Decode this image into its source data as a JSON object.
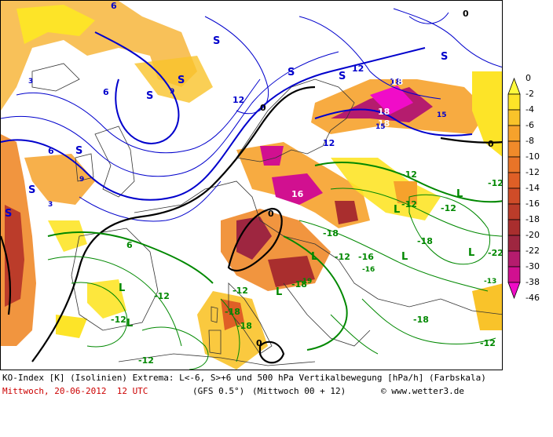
{
  "caption": {
    "line1": "KO-Index [K] (Isolinien) Extrema: L<-6, S>+6 und 500 hPa Vertikalbewegung [hPa/h] (Farbskala)",
    "date": "Mittwoch, 20-06-2012  12 UTC",
    "model": "(GFS 0.5°)",
    "run": "(Mittwoch 00 + 12)",
    "copyright": "© www.wetter3.de"
  },
  "colors": {
    "date_text": "#cc0000",
    "stable_isolines": "#0000cc",
    "unstable_isolines": "#008800",
    "zero_isoline": "#000000"
  },
  "color_scale": {
    "labels": [
      "0",
      "-2",
      "-4",
      "-6",
      "-8",
      "-10",
      "-12",
      "-14",
      "-16",
      "-18",
      "-20",
      "-22",
      "-30",
      "-38",
      "-46"
    ],
    "colors": [
      "#fffa3c",
      "#fde428",
      "#f9c32a",
      "#f6a22c",
      "#f08a2a",
      "#e97428",
      "#df5f26",
      "#cf4c28",
      "#bb3c2a",
      "#a92e2e",
      "#9e2640",
      "#b51c6e",
      "#d11090",
      "#f00cc8"
    ]
  },
  "map_labels": {
    "S": [
      "S",
      "S",
      "S",
      "S",
      "S",
      "S",
      "S",
      "S",
      "S"
    ],
    "L": [
      "L",
      "L",
      "L",
      "L",
      "L",
      "L",
      "L",
      "L"
    ],
    "blue_values": [
      "6",
      "6",
      "6",
      "12",
      "12",
      "12",
      "18",
      "18",
      "15",
      "9",
      "3",
      "3",
      "9"
    ],
    "green_values": [
      "6",
      "-12",
      "-12",
      "-12",
      "-18",
      "-18",
      "-18",
      "-18",
      "-12",
      "-12",
      "-12",
      "-16",
      "-12",
      "-22",
      "-12",
      "-12",
      "-18",
      "-12"
    ],
    "zero_values": [
      "0",
      "0",
      "0",
      "0",
      "0"
    ],
    "cell_values": [
      "18",
      "18",
      "16",
      "15",
      "-19",
      "-18",
      "-13",
      "-16"
    ]
  }
}
